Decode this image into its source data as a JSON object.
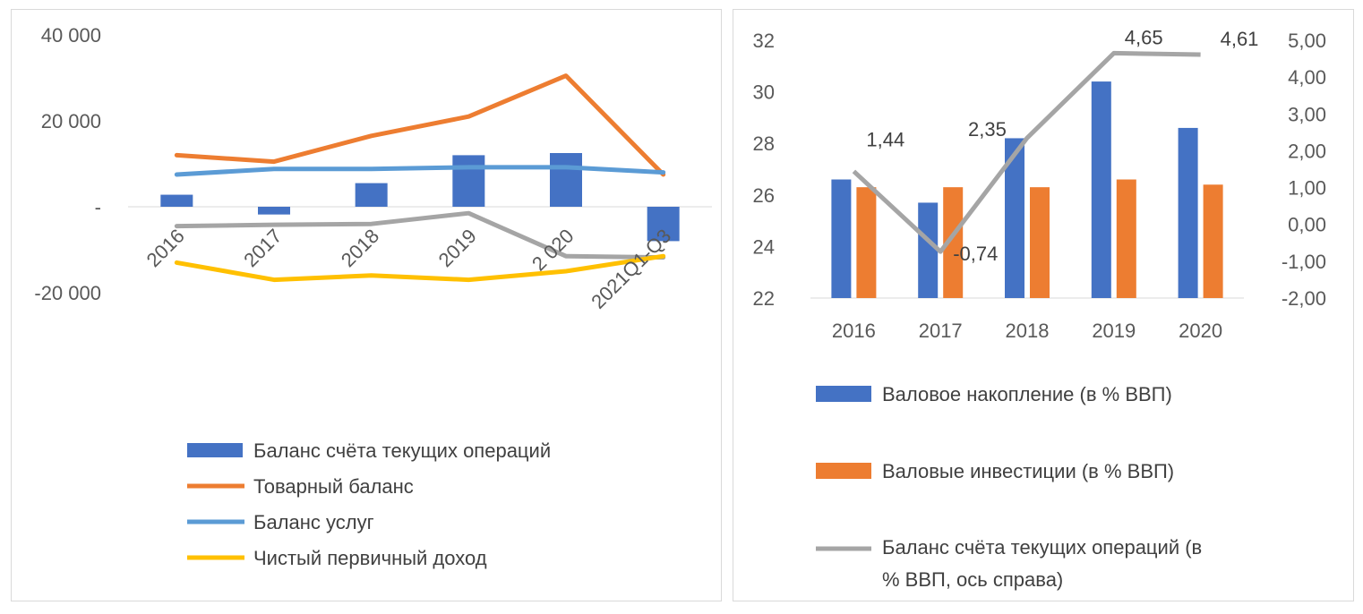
{
  "chart_data": [
    {
      "type": "bar",
      "categories": [
        "2016",
        "2017",
        "2018",
        "2019",
        "2 020",
        "2021Q1-Q3"
      ],
      "ylim": [
        -20000,
        40000
      ],
      "y_ticks": [
        "40 000",
        "20 000",
        "-",
        "-20 000"
      ],
      "y_tick_values": [
        40000,
        20000,
        0,
        -20000
      ],
      "series": [
        {
          "name": "Баланс счёта текущих операций",
          "kind": "bar",
          "color": "#4472c4",
          "values": [
            2800,
            -1800,
            5500,
            12000,
            12500,
            -8000
          ]
        },
        {
          "name": "Товарный баланс",
          "kind": "line",
          "color": "#ed7d31",
          "values": [
            12000,
            10500,
            16500,
            21000,
            30500,
            7500
          ]
        },
        {
          "name": "Баланс услуг",
          "kind": "line",
          "color": "#5b9bd5",
          "values": [
            7500,
            8800,
            8800,
            9200,
            9200,
            8000
          ]
        },
        {
          "name": "",
          "kind": "line",
          "color": "#a5a5a5",
          "values": [
            -4500,
            -4200,
            -4000,
            -1500,
            -11500,
            -11800
          ]
        },
        {
          "name": "Чистый первичный доход",
          "kind": "line",
          "color": "#ffc000",
          "values": [
            -13000,
            -17000,
            -16000,
            -17000,
            -15000,
            -11500
          ]
        }
      ],
      "legend": [
        "Баланс счёта текущих операций",
        "Товарный баланс",
        "Баланс услуг",
        "Чистый первичный доход"
      ],
      "legend_position": "bottom",
      "grid": false
    },
    {
      "type": "bar",
      "categories": [
        "2016",
        "2017",
        "2018",
        "2019",
        "2020"
      ],
      "ylim": [
        22,
        32
      ],
      "y_ticks": [
        "32",
        "30",
        "28",
        "26",
        "24",
        "22"
      ],
      "y_tick_values": [
        32,
        30,
        28,
        26,
        24,
        22
      ],
      "y2lim": [
        -2,
        5
      ],
      "y2_ticks": [
        "5,00",
        "4,00",
        "3,00",
        "2,00",
        "1,00",
        "0,00",
        "-1,00",
        "-2,00"
      ],
      "y2_tick_values": [
        5,
        4,
        3,
        2,
        1,
        0,
        -1,
        -2
      ],
      "series": [
        {
          "name": "Валовое накопление (в % ВВП)",
          "kind": "bar",
          "axis": "left",
          "color": "#4472c4",
          "values": [
            26.6,
            25.7,
            28.2,
            30.4,
            28.6
          ]
        },
        {
          "name": "Валовые инвестиции (в % ВВП)",
          "kind": "bar",
          "axis": "left",
          "color": "#ed7d31",
          "values": [
            26.3,
            26.3,
            26.3,
            26.6,
            26.4
          ]
        },
        {
          "name": "Баланс счёта текущих операций (в % ВВП, ось справа)",
          "kind": "line",
          "axis": "right",
          "color": "#a5a5a5",
          "values": [
            1.44,
            -0.74,
            2.35,
            4.65,
            4.61
          ],
          "labels": [
            "1,44",
            "-0,74",
            "2,35",
            "4,65",
            "4,61"
          ]
        }
      ],
      "legend": [
        "Валовое накопление (в % ВВП)",
        "Валовые инвестиции (в % ВВП)",
        "Баланс счёта текущих операций (в",
        "% ВВП, ось справа)"
      ],
      "legend_position": "bottom",
      "grid": false
    }
  ]
}
